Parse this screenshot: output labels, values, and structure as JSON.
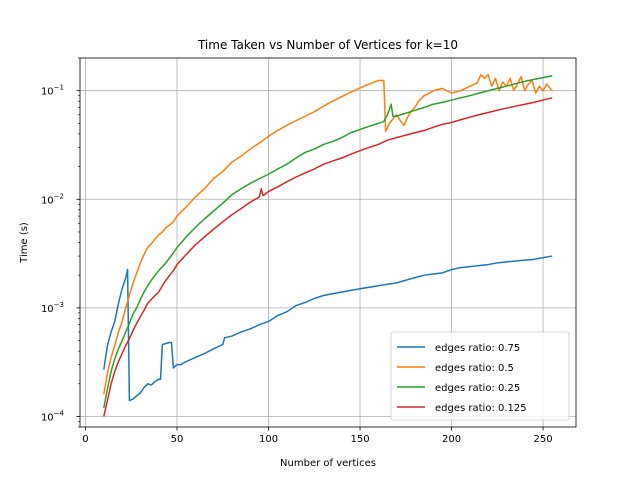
{
  "chart_data": {
    "type": "line",
    "title": "Time Taken vs Number of Vertices for k=10",
    "xlabel": "Number of vertices",
    "ylabel": "Time (s)",
    "yscale": "log",
    "xlim": [
      -3,
      268
    ],
    "ylim": [
      8e-05,
      0.2
    ],
    "xticks": [
      0,
      50,
      100,
      150,
      200,
      250
    ],
    "xtick_labels": [
      "0",
      "50",
      "100",
      "150",
      "200",
      "250"
    ],
    "yticks": [
      0.0001,
      0.001,
      0.01,
      0.1
    ],
    "ytick_base": "10",
    "ytick_exponents": [
      "−4",
      "−3",
      "−2",
      "−1"
    ],
    "grid": true,
    "legend_position": "lower-right",
    "series": [
      {
        "name": "edges ratio: 0.75",
        "color": "#1f77b4",
        "x": [
          10,
          12,
          14,
          16,
          18,
          20,
          22,
          23,
          24,
          26,
          28,
          30,
          32,
          34,
          36,
          38,
          40,
          41,
          42,
          44,
          46,
          47,
          48,
          50,
          52,
          55,
          60,
          65,
          70,
          75,
          76,
          80,
          85,
          90,
          95,
          100,
          105,
          110,
          115,
          120,
          125,
          130,
          135,
          140,
          145,
          150,
          155,
          160,
          165,
          170,
          175,
          180,
          185,
          190,
          195,
          200,
          205,
          210,
          215,
          220,
          225,
          230,
          235,
          240,
          245,
          250,
          255
        ],
        "y": [
          0.00027,
          0.00045,
          0.0006,
          0.00075,
          0.0011,
          0.0015,
          0.0019,
          0.00225,
          0.00014,
          0.000145,
          0.000155,
          0.000165,
          0.000185,
          0.0002,
          0.000195,
          0.00021,
          0.00022,
          0.00022,
          0.00046,
          0.00047,
          0.00048,
          0.00048,
          0.00028,
          0.0003,
          0.0003,
          0.00032,
          0.00035,
          0.00038,
          0.00042,
          0.00046,
          0.00053,
          0.00055,
          0.0006,
          0.00064,
          0.0007,
          0.00075,
          0.00085,
          0.00092,
          0.00105,
          0.00112,
          0.00122,
          0.0013,
          0.00135,
          0.0014,
          0.00145,
          0.0015,
          0.00155,
          0.0016,
          0.00165,
          0.0017,
          0.0018,
          0.0019,
          0.002,
          0.00205,
          0.0021,
          0.00225,
          0.00235,
          0.0024,
          0.00245,
          0.0025,
          0.0026,
          0.00265,
          0.0027,
          0.00275,
          0.0028,
          0.0029,
          0.003
        ]
      },
      {
        "name": "edges ratio: 0.5",
        "color": "#ff7f0e",
        "x": [
          10,
          12,
          14,
          16,
          18,
          20,
          22,
          24,
          26,
          28,
          30,
          32,
          34,
          36,
          38,
          40,
          42,
          44,
          46,
          48,
          50,
          55,
          60,
          65,
          70,
          75,
          80,
          85,
          90,
          95,
          100,
          105,
          110,
          115,
          120,
          125,
          130,
          135,
          140,
          145,
          150,
          155,
          160,
          163,
          164,
          166,
          168,
          170,
          172,
          174,
          176,
          178,
          180,
          182,
          185,
          188,
          190,
          195,
          200,
          205,
          210,
          214,
          216,
          218,
          220,
          222,
          224,
          226,
          228,
          230,
          232,
          234,
          236,
          238,
          240,
          242,
          244,
          246,
          248,
          250,
          252,
          255
        ],
        "y": [
          0.00016,
          0.00025,
          0.00035,
          0.00045,
          0.0006,
          0.00075,
          0.001,
          0.0013,
          0.0017,
          0.0021,
          0.0026,
          0.0031,
          0.0036,
          0.0039,
          0.0043,
          0.0047,
          0.005,
          0.0055,
          0.0058,
          0.0062,
          0.007,
          0.0085,
          0.0105,
          0.0125,
          0.0155,
          0.018,
          0.022,
          0.025,
          0.029,
          0.033,
          0.038,
          0.043,
          0.048,
          0.053,
          0.058,
          0.064,
          0.072,
          0.08,
          0.088,
          0.097,
          0.106,
          0.115,
          0.124,
          0.124,
          0.042,
          0.05,
          0.055,
          0.06,
          0.053,
          0.048,
          0.057,
          0.065,
          0.07,
          0.08,
          0.09,
          0.095,
          0.1,
          0.105,
          0.095,
          0.1,
          0.11,
          0.118,
          0.14,
          0.13,
          0.14,
          0.11,
          0.13,
          0.1,
          0.12,
          0.11,
          0.13,
          0.1,
          0.115,
          0.135,
          0.1,
          0.115,
          0.125,
          0.095,
          0.11,
          0.1,
          0.115,
          0.1
        ]
      },
      {
        "name": "edges ratio: 0.25",
        "color": "#2ca02c",
        "x": [
          10,
          12,
          14,
          16,
          18,
          20,
          22,
          24,
          26,
          28,
          30,
          32,
          34,
          36,
          38,
          40,
          42,
          44,
          46,
          48,
          50,
          55,
          60,
          65,
          70,
          75,
          80,
          85,
          90,
          95,
          100,
          105,
          110,
          115,
          120,
          125,
          130,
          135,
          140,
          145,
          150,
          155,
          160,
          163,
          165,
          167,
          168,
          170,
          172,
          175,
          180,
          185,
          190,
          195,
          200,
          205,
          210,
          215,
          220,
          225,
          230,
          235,
          240,
          245,
          250,
          255
        ],
        "y": [
          0.00012,
          0.00018,
          0.00026,
          0.00034,
          0.00042,
          0.0005,
          0.0006,
          0.00072,
          0.00088,
          0.001,
          0.0012,
          0.0014,
          0.0016,
          0.0018,
          0.002,
          0.0022,
          0.0024,
          0.0026,
          0.0029,
          0.0032,
          0.0036,
          0.0045,
          0.0055,
          0.0066,
          0.0078,
          0.0092,
          0.011,
          0.0125,
          0.014,
          0.0155,
          0.017,
          0.019,
          0.021,
          0.024,
          0.027,
          0.029,
          0.032,
          0.034,
          0.037,
          0.041,
          0.044,
          0.047,
          0.05,
          0.052,
          0.06,
          0.075,
          0.058,
          0.058,
          0.06,
          0.062,
          0.066,
          0.07,
          0.075,
          0.078,
          0.082,
          0.086,
          0.09,
          0.095,
          0.1,
          0.105,
          0.11,
          0.116,
          0.122,
          0.127,
          0.132,
          0.137
        ]
      },
      {
        "name": "edges ratio: 0.125",
        "color": "#d62728",
        "x": [
          10,
          12,
          14,
          16,
          18,
          20,
          22,
          24,
          26,
          28,
          30,
          32,
          34,
          36,
          38,
          40,
          42,
          44,
          46,
          48,
          50,
          55,
          60,
          65,
          70,
          75,
          80,
          85,
          90,
          95,
          96,
          97,
          100,
          105,
          110,
          115,
          120,
          125,
          130,
          135,
          140,
          145,
          150,
          155,
          160,
          165,
          170,
          175,
          180,
          185,
          190,
          195,
          200,
          205,
          210,
          215,
          220,
          225,
          230,
          235,
          240,
          245,
          250,
          255
        ],
        "y": [
          0.0001,
          0.00014,
          0.0002,
          0.00026,
          0.00032,
          0.00038,
          0.00045,
          0.00052,
          0.00062,
          0.00072,
          0.00083,
          0.00095,
          0.0011,
          0.0012,
          0.0013,
          0.0014,
          0.0016,
          0.0018,
          0.002,
          0.0022,
          0.0025,
          0.0031,
          0.0038,
          0.0045,
          0.0053,
          0.0062,
          0.0072,
          0.0082,
          0.0094,
          0.0105,
          0.0125,
          0.0108,
          0.0118,
          0.013,
          0.0145,
          0.016,
          0.0175,
          0.019,
          0.021,
          0.0225,
          0.024,
          0.026,
          0.028,
          0.03,
          0.032,
          0.035,
          0.037,
          0.039,
          0.041,
          0.043,
          0.046,
          0.049,
          0.051,
          0.054,
          0.057,
          0.06,
          0.063,
          0.066,
          0.069,
          0.072,
          0.075,
          0.078,
          0.082,
          0.086
        ]
      }
    ]
  }
}
